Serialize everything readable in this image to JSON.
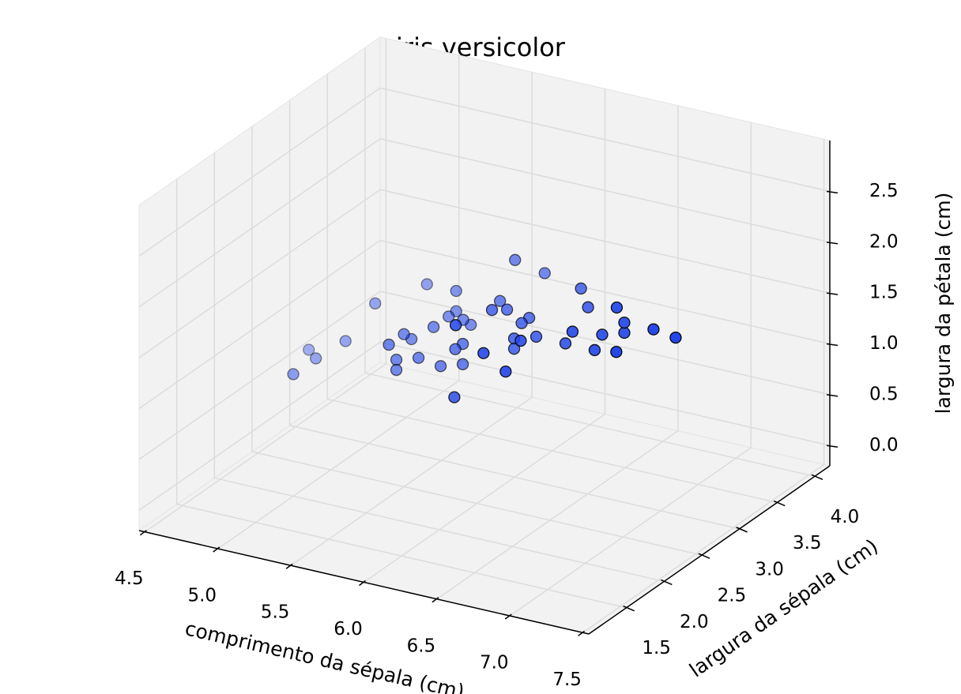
{
  "chart_data": {
    "type": "scatter3d",
    "title": "iris versicolor",
    "xlabel": "comprimento da sépala (cm)",
    "ylabel": "largura da sépala (cm)",
    "zlabel": "largura da pétala (cm)",
    "color": "#2346e8",
    "grid": true,
    "xlim": [
      4.46,
      7.54
    ],
    "ylim": [
      1.0,
      4.2
    ],
    "zlim": [
      -0.2,
      3.0
    ],
    "xticks": [
      4.5,
      {
        "value": 5,
        "label": "5.0"
      },
      5.5,
      {
        "value": 6,
        "label": "6.0"
      },
      6.5,
      {
        "value": 7,
        "label": "7.0"
      },
      7.5
    ],
    "yticks": [
      1.5,
      {
        "value": 2,
        "label": "2.0"
      },
      2.5,
      {
        "value": 3,
        "label": "3.0"
      },
      3.5,
      {
        "value": 4,
        "label": "4.0"
      }
    ],
    "zticks": [
      {
        "value": 0,
        "label": "0.0"
      },
      0.5,
      {
        "value": 1,
        "label": "1.0"
      },
      1.5,
      {
        "value": 2,
        "label": "2.0"
      },
      2.5
    ],
    "x": [
      7.0,
      6.4,
      6.9,
      5.5,
      6.5,
      5.7,
      6.3,
      4.9,
      6.6,
      5.2,
      5.0,
      5.9,
      6.0,
      6.1,
      5.6,
      6.7,
      5.6,
      5.8,
      6.2,
      5.6,
      5.9,
      6.1,
      6.3,
      6.1,
      6.4,
      6.6,
      6.8,
      6.7,
      6.0,
      5.7,
      5.5,
      5.5,
      5.8,
      6.0,
      5.4,
      6.0,
      6.7,
      6.3,
      5.6,
      5.5,
      5.5,
      6.1,
      5.8,
      5.0,
      5.6,
      5.7,
      5.7,
      6.2,
      5.1,
      5.7
    ],
    "y": [
      3.2,
      3.2,
      3.1,
      2.3,
      2.8,
      2.8,
      3.3,
      2.4,
      2.9,
      2.7,
      2.0,
      3.0,
      2.2,
      2.9,
      2.9,
      3.1,
      3.0,
      2.7,
      2.2,
      2.5,
      3.2,
      2.8,
      2.5,
      2.8,
      2.9,
      3.0,
      2.8,
      3.0,
      2.9,
      2.6,
      2.4,
      2.4,
      2.7,
      2.7,
      3.0,
      3.4,
      3.1,
      2.3,
      3.0,
      2.5,
      2.6,
      3.0,
      2.6,
      2.3,
      2.7,
      3.0,
      2.9,
      2.9,
      2.5,
      2.8
    ],
    "z": [
      1.4,
      1.5,
      1.5,
      1.3,
      1.5,
      1.3,
      1.6,
      1.0,
      1.3,
      1.4,
      1.0,
      1.5,
      1.0,
      1.4,
      1.3,
      1.4,
      1.5,
      1.0,
      1.5,
      1.1,
      1.8,
      1.3,
      1.5,
      1.2,
      1.3,
      1.4,
      1.4,
      1.7,
      1.5,
      1.0,
      1.1,
      1.0,
      1.2,
      1.6,
      1.5,
      1.6,
      1.5,
      1.3,
      1.3,
      1.3,
      1.2,
      1.4,
      1.2,
      1.0,
      1.3,
      1.2,
      1.3,
      1.3,
      1.1,
      1.3
    ]
  }
}
